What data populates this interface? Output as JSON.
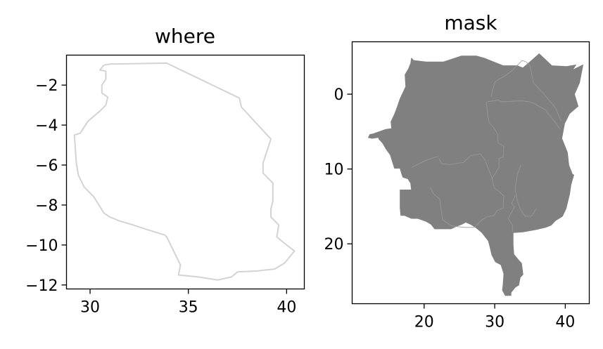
{
  "chart_data": [
    {
      "type": "line",
      "title": "where",
      "xlabel": "",
      "ylabel": "",
      "xlim": [
        28.8,
        40.9
      ],
      "ylim": [
        -12.2,
        -0.5
      ],
      "xticks": [
        30,
        35,
        40
      ],
      "yticks": [
        -2,
        -4,
        -6,
        -8,
        -10,
        -12
      ],
      "xtick_labels": [
        "30",
        "35",
        "40"
      ],
      "ytick_labels": [
        "−2",
        "−4",
        "−6",
        "−8",
        "−10",
        "−12"
      ],
      "series": [
        {
          "color": "#d3d3d3",
          "x": [
            30.7,
            31.0,
            33.9,
            37.6,
            37.7,
            39.2,
            38.8,
            38.8,
            39.3,
            39.3,
            39.2,
            39.2,
            39.6,
            39.5,
            40.0,
            40.4,
            39.9,
            39.4,
            38.5,
            37.5,
            37.2,
            36.5,
            35.5,
            34.5,
            34.6,
            34.2,
            33.9,
            33.8,
            32.8,
            32.2,
            31.5,
            31.0,
            30.7,
            30.2,
            29.7,
            29.4,
            29.3,
            29.2,
            29.5,
            29.9,
            30.5,
            30.8,
            30.9,
            30.6,
            30.6,
            30.8,
            30.8,
            30.5,
            30.7
          ],
          "y": [
            -1.0,
            -0.95,
            -0.9,
            -2.65,
            -3.1,
            -4.7,
            -5.9,
            -6.4,
            -6.9,
            -7.8,
            -8.2,
            -8.6,
            -9.0,
            -9.6,
            -10.0,
            -10.3,
            -10.9,
            -11.2,
            -11.3,
            -11.35,
            -11.6,
            -11.75,
            -11.6,
            -11.5,
            -11.0,
            -10.2,
            -9.6,
            -9.5,
            -9.2,
            -9.0,
            -8.8,
            -8.6,
            -8.4,
            -7.6,
            -7.1,
            -6.5,
            -5.9,
            -4.5,
            -4.4,
            -3.8,
            -3.3,
            -3.0,
            -2.6,
            -2.4,
            -2.0,
            -1.7,
            -1.3,
            -1.25,
            -1.0
          ]
        }
      ]
    },
    {
      "type": "area",
      "title": "mask",
      "xlabel": "",
      "ylabel": "",
      "xlim": [
        9.8,
        43.4
      ],
      "ylim": [
        -28.0,
        7.0
      ],
      "xticks": [
        20,
        30,
        40
      ],
      "yticks": [
        0,
        -10,
        -20
      ],
      "xtick_labels": [
        "20",
        "30",
        "40"
      ],
      "ytick_labels": [
        "0",
        "10",
        "20"
      ],
      "fill_color": "#808080",
      "boundary_color": "#9a9a9a",
      "series": [
        {
          "x": [
            18.2,
            18.5,
            20.3,
            22.7,
            25.3,
            27.4,
            28.5,
            31.2,
            33.2,
            34.0,
            35.1,
            36.3,
            38.1,
            40.2,
            41.5,
            41.0,
            42.5,
            42.0,
            41.3,
            41.8,
            40.6,
            39.9,
            39.5,
            40.3,
            40.5,
            41.0,
            41.2,
            40.8,
            40.6,
            40.1,
            39.6,
            38.6,
            38.0,
            37.2,
            35.8,
            34.0,
            32.6,
            32.6,
            32.7,
            33.4,
            33.8,
            34.0,
            33.6,
            33.4,
            32.9,
            32.3,
            32.3,
            31.5,
            31.1,
            31.2,
            31.3,
            30.9,
            30.1,
            29.6,
            29.3,
            29.1,
            28.2,
            27.3,
            26.6,
            25.9,
            25.3,
            24.7,
            23.8,
            22.4,
            21.5,
            21.0,
            20.3,
            19.1,
            18.2,
            17.2,
            16.7,
            16.6,
            16.6,
            16.6,
            18.2,
            18.1,
            17.7,
            17.0,
            16.8,
            16.6,
            15.8,
            15.2,
            14.6,
            14.1,
            13.6,
            13.5,
            13.4,
            12.6,
            12.1,
            12.3,
            12.8,
            13.7,
            14.6,
            15.4,
            15.3,
            15.8,
            16.2,
            16.6,
            17.1,
            17.4,
            17.3,
            17.8,
            18.1,
            18.2
          ],
          "y": [
            4.8,
            4.5,
            4.3,
            4.3,
            5.1,
            5.1,
            4.8,
            3.8,
            3.8,
            3.5,
            4.4,
            5.4,
            3.8,
            3.7,
            3.9,
            3.2,
            3.9,
            1.5,
            0.0,
            -1.6,
            -2.6,
            -3.9,
            -5.9,
            -7.8,
            -9.5,
            -10.7,
            -10.8,
            -12.1,
            -13.4,
            -15.3,
            -16.3,
            -16.9,
            -17.5,
            -17.8,
            -18.1,
            -18.4,
            -18.5,
            -20.1,
            -21.4,
            -22.2,
            -22.6,
            -24.1,
            -24.5,
            -25.5,
            -25.8,
            -26.5,
            -26.9,
            -26.9,
            -26.2,
            -25.4,
            -24.0,
            -22.8,
            -22.4,
            -21.5,
            -20.3,
            -19.6,
            -18.5,
            -17.8,
            -17.4,
            -17.1,
            -17.4,
            -17.6,
            -18.0,
            -18.0,
            -18.0,
            -17.4,
            -17.0,
            -16.6,
            -16.6,
            -16.2,
            -16.2,
            -15.2,
            -13.8,
            -12.8,
            -12.8,
            -11.9,
            -11.3,
            -11.1,
            -10.6,
            -9.9,
            -9.9,
            -8.1,
            -7.3,
            -6.5,
            -6.0,
            -5.7,
            -5.8,
            -5.9,
            -5.8,
            -5.4,
            -5.3,
            -5.0,
            -4.7,
            -4.6,
            -3.7,
            -2.7,
            -1.7,
            -0.6,
            0.4,
            1.0,
            2.6,
            3.4,
            4.1,
            4.8
          ]
        }
      ],
      "boundaries": [
        {
          "x": [
            29.6,
            30.6,
            30.6,
            31.2,
            31.3,
            30.5,
            30.4,
            29.8,
            29.2,
            29.0,
            28.8
          ],
          "y": [
            -11.3,
            -9.8,
            -8.6,
            -8.4,
            -7.0,
            -6.5,
            -5.3,
            -4.4,
            -3.8,
            -2.7,
            -1.0
          ]
        },
        {
          "x": [
            29.0,
            29.8,
            30.5,
            31.0,
            31.7,
            33.1,
            33.9,
            34.8,
            35.5,
            37.2,
            39.3
          ],
          "y": [
            -1.0,
            -0.9,
            -0.8,
            -1.0,
            -1.0,
            -0.9,
            -0.9,
            -1.0,
            -1.2,
            -2.1,
            -4.7
          ]
        },
        {
          "x": [
            29.5,
            30.0,
            30.6,
            31.2,
            32.4,
            33.9,
            34.5,
            35.0,
            35.5,
            37.0,
            38.6,
            39.4
          ],
          "y": [
            -0.3,
            1.6,
            2.0,
            2.3,
            3.1,
            4.5,
            4.3,
            3.8,
            1.5,
            0.0,
            -1.8,
            -3.6
          ]
        },
        {
          "x": [
            28.7,
            29.1,
            29.6,
            29.9,
            30.6,
            31.3,
            31.2,
            30.4,
            29.9,
            28.9,
            28.2,
            27.1,
            25.7,
            23.9,
            22.6,
            22.2,
            21.3,
            20.9
          ],
          "y": [
            -9.0,
            -10.0,
            -11.1,
            -12.5,
            -13.0,
            -13.6,
            -15.2,
            -15.5,
            -16.2,
            -16.4,
            -16.8,
            -17.8,
            -17.8,
            -17.6,
            -16.8,
            -14.0,
            -13.3,
            -12.5
          ]
        },
        {
          "x": [
            33.7,
            33.2,
            32.9,
            33.2,
            33.6,
            34.3,
            35.2,
            35.9
          ],
          "y": [
            -9.5,
            -10.8,
            -12.7,
            -14.2,
            -15.3,
            -16.3,
            -16.3,
            -15.3
          ]
        },
        {
          "x": [
            32.9,
            32.4,
            32.8,
            31.9,
            32.5,
            32.5
          ],
          "y": [
            -13.6,
            -14.6,
            -15.1,
            -16.6,
            -17.5,
            -18.4
          ]
        },
        {
          "x": [
            22.1,
            22.5,
            23.7,
            25.6,
            26.6,
            28.0,
            28.7
          ],
          "y": [
            -8.6,
            -9.3,
            -9.4,
            -9.1,
            -8.2,
            -8.0,
            -8.9
          ]
        },
        {
          "x": [
            22.0,
            21.3,
            20.7,
            19.9,
            18.2
          ],
          "y": [
            -8.3,
            -8.5,
            -8.7,
            -9.0,
            -9.8
          ]
        }
      ]
    }
  ]
}
